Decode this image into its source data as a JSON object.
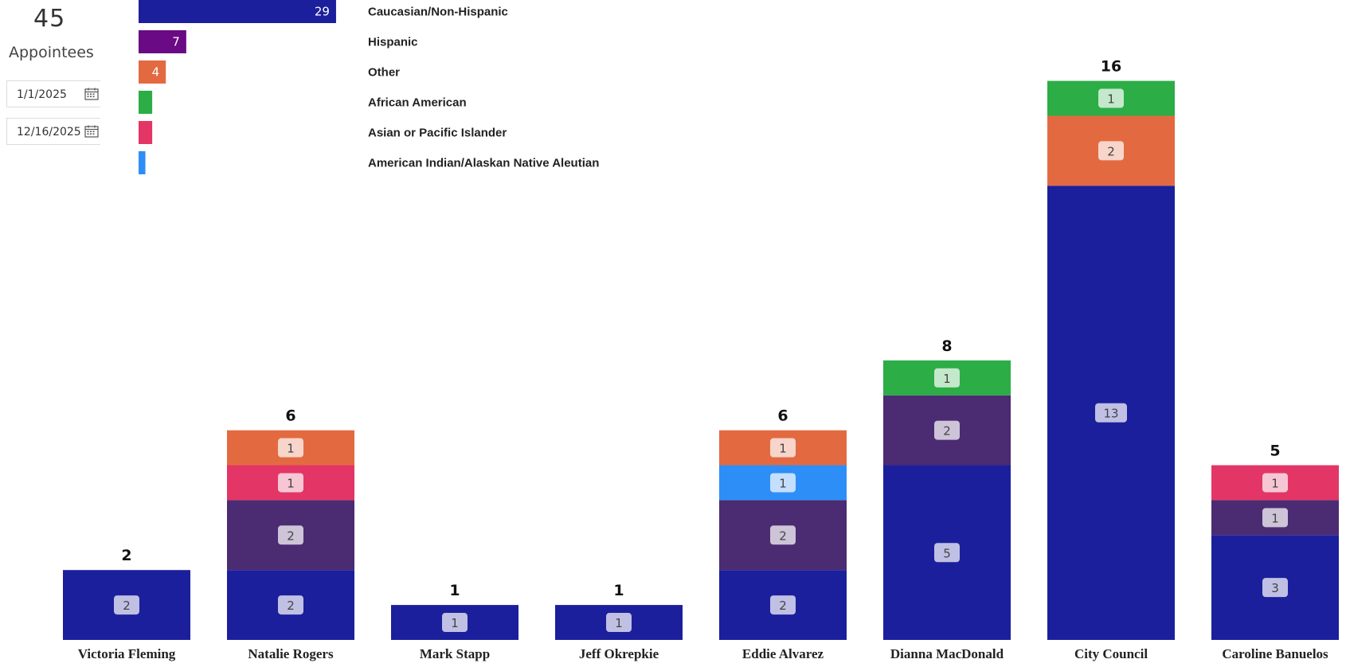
{
  "kpi": {
    "count": "45",
    "label": "Appointees"
  },
  "filters": {
    "start_date": "1/1/2025",
    "end_date": "12/16/2025",
    "calendar_icon": "calendar-icon"
  },
  "colors": {
    "Caucasian/Non-Hispanic": "#1c1f9c",
    "Hispanic": "#6a0a84",
    "Other": "#e36a40",
    "African American": "#2cad46",
    "Asian or Pacific Islander": "#e33566",
    "American Indian/Alaskan Native Aleutian": "#2e8ef7",
    "Hispanic (stacked)": "#4b2b72"
  },
  "chart_data": [
    {
      "type": "bar",
      "orientation": "horizontal",
      "categories": [
        "Caucasian/Non-Hispanic",
        "Hispanic",
        "Other",
        "African American",
        "Asian or Pacific Islander",
        "American Indian/Alaskan Native Aleutian"
      ],
      "values": [
        29,
        7,
        4,
        2,
        2,
        1
      ],
      "data_labels": [
        "29",
        "7",
        "4",
        "",
        "",
        ""
      ],
      "title": "",
      "xlabel": "",
      "ylabel": ""
    },
    {
      "type": "bar",
      "stacked": true,
      "categories": [
        "Victoria Fleming",
        "Natalie Rogers",
        "Mark Stapp",
        "Jeff Okrepkie",
        "Eddie Alvarez",
        "Dianna MacDonald",
        "City Council",
        "Caroline Banuelos"
      ],
      "series": [
        {
          "key": "Caucasian/Non-Hispanic",
          "values": [
            2,
            2,
            1,
            1,
            2,
            5,
            13,
            3
          ]
        },
        {
          "key": "Hispanic",
          "values": [
            0,
            2,
            0,
            0,
            2,
            2,
            0,
            1
          ]
        },
        {
          "key": "Asian or Pacific Islander",
          "values": [
            0,
            1,
            0,
            0,
            0,
            0,
            0,
            1
          ]
        },
        {
          "key": "American Indian/Alaskan Native Aleutian",
          "values": [
            0,
            0,
            0,
            0,
            1,
            0,
            0,
            0
          ]
        },
        {
          "key": "Other",
          "values": [
            0,
            1,
            0,
            0,
            1,
            0,
            2,
            0
          ]
        },
        {
          "key": "African American",
          "values": [
            0,
            0,
            0,
            0,
            0,
            1,
            1,
            0
          ]
        }
      ],
      "totals": [
        2,
        6,
        1,
        1,
        6,
        8,
        16,
        5
      ],
      "title": "",
      "xlabel": "",
      "ylabel": "",
      "ylim": [
        0,
        16
      ]
    }
  ]
}
